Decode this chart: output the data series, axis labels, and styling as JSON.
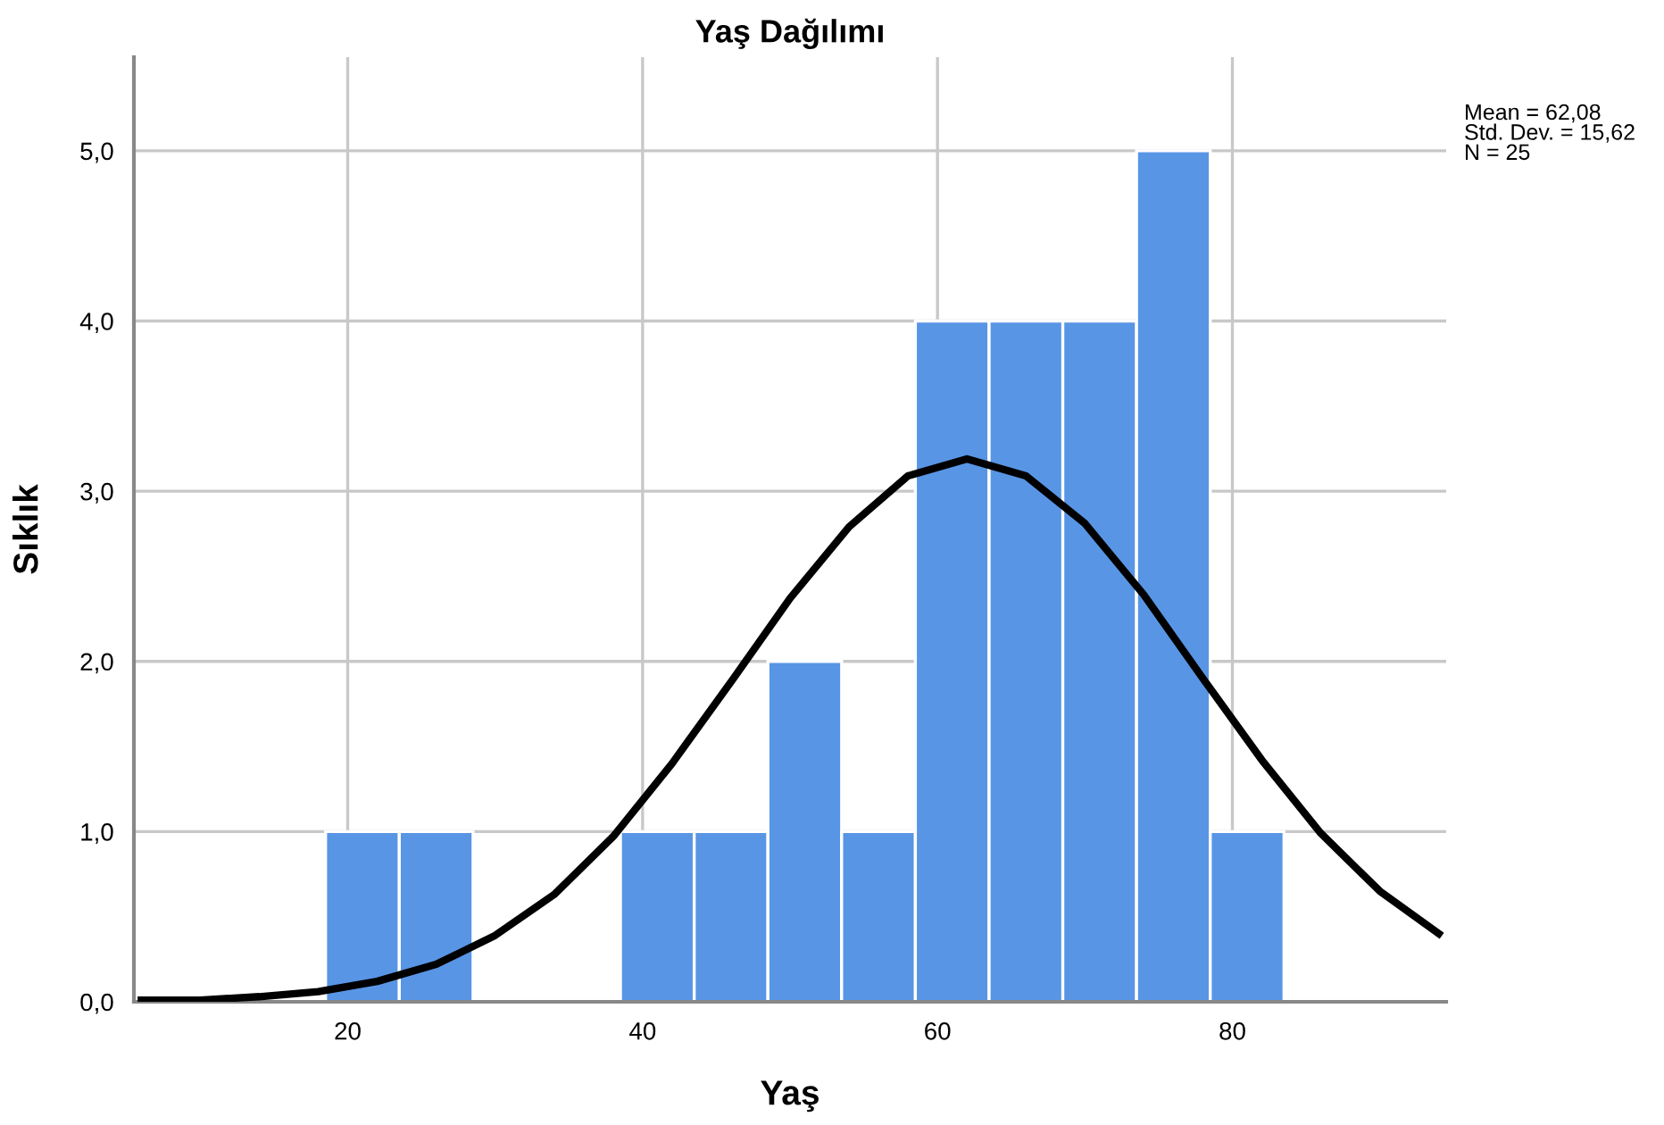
{
  "chart_data": {
    "type": "histogram",
    "title": "Yaş Dağılımı",
    "xlabel": "Yaş",
    "ylabel": "Sıklık",
    "bins": [
      18.5,
      23.5,
      28.5,
      33.5,
      38.5,
      43.5,
      48.5,
      53.5,
      58.5,
      63.5,
      68.5,
      73.5,
      78.5,
      83.5
    ],
    "values": [
      1,
      1,
      0,
      0,
      1,
      1,
      2,
      1,
      4,
      4,
      4,
      5,
      1
    ],
    "color": "#5895e5",
    "series": [
      {
        "type": "line",
        "color": "#000000",
        "x": [
          6,
          10,
          14,
          18,
          22,
          26,
          30,
          34,
          38,
          42,
          46,
          50,
          54,
          58,
          62,
          66,
          70,
          74,
          78,
          82,
          86,
          90,
          94
        ],
        "values": [
          0.01,
          0.01,
          0.03,
          0.06,
          0.12,
          0.22,
          0.39,
          0.63,
          0.97,
          1.4,
          1.88,
          2.37,
          2.79,
          3.09,
          3.19,
          3.09,
          2.81,
          2.39,
          1.9,
          1.42,
          0.99,
          0.65,
          0.4
        ]
      }
    ],
    "xlim": [
      5.5,
      94.5
    ],
    "ylim": [
      0,
      5.55
    ],
    "xticks": [
      20,
      40,
      60,
      80
    ],
    "yticks": [
      {
        "value": 0,
        "label": "0,0"
      },
      {
        "value": 1,
        "label": "1,0"
      },
      {
        "value": 2,
        "label": "2,0"
      },
      {
        "value": 3,
        "label": "3,0"
      },
      {
        "value": 4,
        "label": "4,0"
      },
      {
        "value": 5,
        "label": "5,0"
      }
    ],
    "grid": true,
    "annotations": [
      "Mean = 62,08\nStd. Dev. = 15,62\nN = 25"
    ]
  }
}
